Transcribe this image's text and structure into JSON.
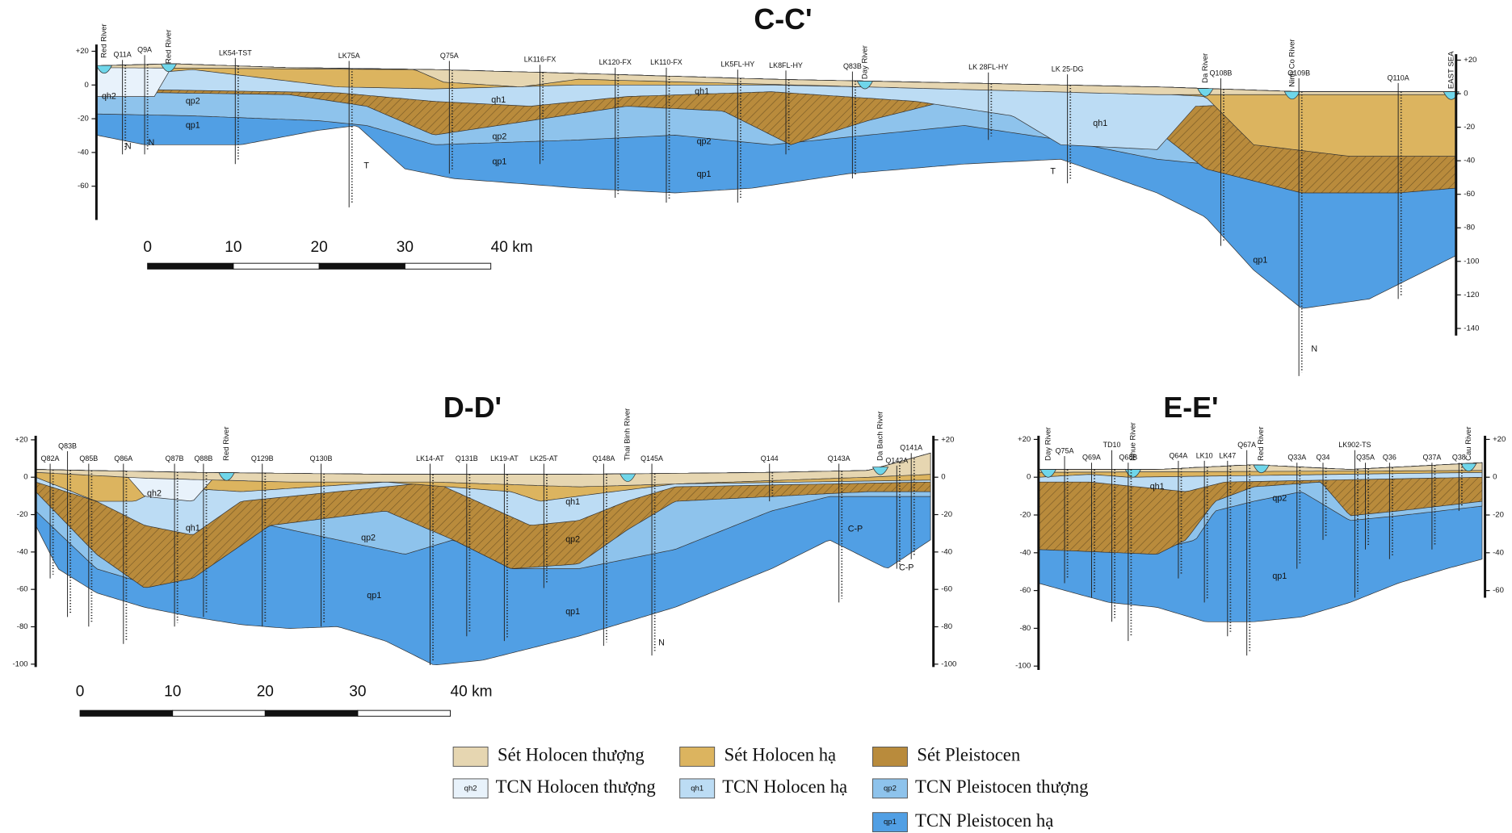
{
  "sections": [
    {
      "title": "C-C'",
      "wells": [
        "Q11A",
        "Q9A",
        "LK54-TST",
        "LK75A",
        "Q75A",
        "LK116-FX",
        "LK120-FX",
        "LK110-FX",
        "LK5FL-HY",
        "LK8FL-HY",
        "Q83B",
        "LK 28FL-HY",
        "LK 25-DG",
        "Q108B",
        "Q109B",
        "Q110A"
      ],
      "rivers": [
        "Red River",
        "Red River",
        "Day River",
        "Da River",
        "Ninh Co River",
        "EAST SEA"
      ],
      "layer_labels": [
        "qh2",
        "qp2",
        "qp1",
        "N",
        "N",
        "T",
        "qh1",
        "qp2",
        "qp1",
        "qh1",
        "qp2",
        "qp1",
        "T",
        "qh1",
        "qp1",
        "N"
      ],
      "left_axis": [
        {
          "value": 20,
          "label": "+20"
        },
        0,
        -20,
        -40,
        -60
      ],
      "right_axis": [
        {
          "value": 20,
          "label": "+20"
        },
        0,
        -20,
        -40,
        -60,
        -80,
        -100,
        -120,
        -140
      ],
      "scale": [
        0,
        10,
        20,
        30,
        {
          "value": 40,
          "label": "40 km"
        }
      ]
    },
    {
      "title": "D-D'",
      "wells": [
        "Q82A",
        "Q83B",
        "Q85B",
        "Q86A",
        "Q87B",
        "Q88B",
        "Q129B",
        "Q130B",
        "LK14-AT",
        "Q131B",
        "LK19-AT",
        "LK25-AT",
        "Q148A",
        "Q145A",
        "Q144",
        "Q143A",
        "Q142A",
        "Q141A"
      ],
      "rivers": [
        "Red River",
        "Thai Binh River",
        "Da Bach River"
      ],
      "layer_labels": [
        "qh2",
        "qh1",
        "qp2",
        "qp1",
        "qh1",
        "qp2",
        "qp1",
        "C-P",
        "C-P",
        "N"
      ],
      "left_axis": [
        {
          "value": 20,
          "label": "+20"
        },
        0,
        -20,
        -40,
        -60,
        -80,
        -100
      ],
      "right_axis": [
        {
          "value": 20,
          "label": "+20"
        },
        0,
        -20,
        -40,
        -60,
        -80,
        -100
      ],
      "scale": [
        0,
        10,
        20,
        30,
        {
          "value": 40,
          "label": "40 km"
        }
      ]
    },
    {
      "title": "E-E'",
      "wells": [
        "Q75A",
        "Q69A",
        "TD10",
        "Q68B",
        "Q64A",
        "LK10",
        "LK47",
        "Q67A",
        "Q33A",
        "Q34",
        "LK902-TS",
        "Q35A",
        "Q36",
        "Q37A",
        "Q38"
      ],
      "rivers": [
        "Day River",
        "Nhue River",
        "Red River",
        "Cau River"
      ],
      "layer_labels": [
        "qh1",
        "qp2",
        "qp1"
      ],
      "left_axis": [
        {
          "value": 20,
          "label": "+20"
        },
        0,
        -20,
        -40,
        -60,
        -80,
        -100
      ],
      "right_axis": [
        {
          "value": 20,
          "label": "+20"
        },
        0,
        -20,
        -40,
        -60
      ]
    }
  ],
  "legend": [
    {
      "label": "Sét Holocen thượng",
      "color": "#e6d6b1"
    },
    {
      "label": "Sét Holocen hạ",
      "color": "#dcb45f"
    },
    {
      "label": "Sét Pleistocen",
      "color": "#b98b3c"
    },
    {
      "code": "qh2",
      "label": "TCN Holocen thượng",
      "color": "#e8f2fb"
    },
    {
      "code": "qh1",
      "label": "TCN Holocen hạ",
      "color": "#bcdcf4"
    },
    {
      "code": "qp2",
      "label": "TCN Pleistocen thượng",
      "color": "#8ec3ec"
    },
    {
      "code": "qp1",
      "label": "TCN Pleistocen hạ",
      "color": "#519fe4"
    }
  ]
}
